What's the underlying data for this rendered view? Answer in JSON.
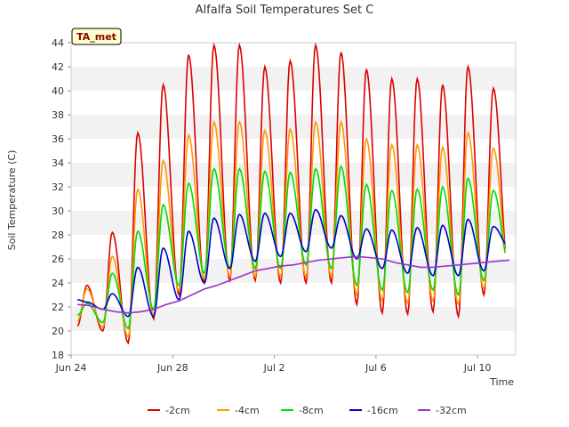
{
  "chart_data": {
    "type": "line",
    "title": "Alfalfa Soil Temperatures Set C",
    "xlabel": "Time",
    "ylabel": "Soil Temperature (C)",
    "badge": "TA_met",
    "xlim": [
      0,
      17.5
    ],
    "ylim": [
      18,
      44
    ],
    "x_ticks": [
      {
        "x": 0,
        "label": "Jun 24"
      },
      {
        "x": 4,
        "label": "Jun 28"
      },
      {
        "x": 8,
        "label": "Jul 2"
      },
      {
        "x": 12,
        "label": "Jul 6"
      },
      {
        "x": 16,
        "label": "Jul 10"
      }
    ],
    "y_ticks": [
      18,
      20,
      22,
      24,
      26,
      28,
      30,
      32,
      34,
      36,
      38,
      40,
      42,
      44
    ],
    "grid": "horizontal bands",
    "legend_position": "bottom",
    "days": [
      "Jun 24",
      "Jun 25",
      "Jun 26",
      "Jun 27",
      "Jun 28",
      "Jun 29",
      "Jun 30",
      "Jul 1",
      "Jul 2",
      "Jul 3",
      "Jul 4",
      "Jul 5",
      "Jul 6",
      "Jul 7",
      "Jul 8",
      "Jul 9",
      "Jul 10",
      "Jul 11"
    ],
    "series": [
      {
        "name": "-2cm",
        "color": "#dd0000",
        "daily_max": [
          23.8,
          28.2,
          36.5,
          40.5,
          43.0,
          43.8,
          43.8,
          42.0,
          42.5,
          43.8,
          43.2,
          41.8,
          41.0,
          41.0,
          40.5,
          42.0,
          40.2
        ],
        "daily_min": [
          20.4,
          20.0,
          19.0,
          21.0,
          23.0,
          24.0,
          24.2,
          24.2,
          24.0,
          24.0,
          24.0,
          22.2,
          21.5,
          21.4,
          21.6,
          21.2,
          23.0,
          24.2
        ]
      },
      {
        "name": "-4cm",
        "color": "#ff9900",
        "daily_max": [
          23.5,
          26.2,
          31.8,
          34.2,
          36.3,
          37.4,
          37.4,
          36.7,
          36.8,
          37.4,
          37.4,
          36.0,
          35.5,
          35.5,
          35.3,
          36.5,
          35.2
        ],
        "daily_min": [
          20.8,
          20.3,
          19.5,
          21.3,
          23.3,
          24.3,
          24.5,
          24.5,
          24.5,
          24.5,
          24.5,
          23.0,
          22.5,
          22.3,
          22.5,
          22.2,
          23.5,
          24.8
        ]
      },
      {
        "name": "-8cm",
        "color": "#00dd00",
        "daily_max": [
          22.3,
          24.8,
          28.3,
          30.5,
          32.3,
          33.5,
          33.5,
          33.3,
          33.2,
          33.5,
          33.7,
          32.2,
          31.7,
          31.8,
          32.0,
          32.7,
          31.7
        ],
        "daily_min": [
          21.3,
          20.7,
          20.2,
          21.8,
          23.8,
          24.8,
          25.2,
          25.2,
          25.2,
          25.5,
          25.2,
          23.8,
          23.4,
          23.2,
          23.4,
          23.0,
          24.2,
          25.5
        ]
      },
      {
        "name": "-16cm",
        "color": "#0000cc",
        "daily_max": [
          22.4,
          23.1,
          25.3,
          26.9,
          28.3,
          29.4,
          29.7,
          29.8,
          29.8,
          30.1,
          29.6,
          28.5,
          28.4,
          28.6,
          28.8,
          29.3,
          28.7
        ],
        "daily_min": [
          22.6,
          21.8,
          21.2,
          21.2,
          22.6,
          24.0,
          25.2,
          25.8,
          26.2,
          26.6,
          26.9,
          26.0,
          25.2,
          24.8,
          24.6,
          24.6,
          25.0,
          27.0
        ]
      },
      {
        "name": "-32cm",
        "color": "#9933cc",
        "x": [
          0,
          0.5,
          1,
          1.5,
          2,
          2.5,
          3,
          3.5,
          4,
          4.5,
          5,
          5.5,
          6,
          6.5,
          7,
          7.5,
          8,
          8.5,
          9,
          9.5,
          10,
          10.5,
          11,
          11.5,
          12,
          12.5,
          13,
          13.5,
          14,
          14.5,
          15,
          15.5,
          16,
          16.5,
          17
        ],
        "values": [
          22.2,
          22.1,
          21.8,
          21.6,
          21.5,
          21.6,
          21.8,
          22.2,
          22.5,
          23.0,
          23.5,
          23.8,
          24.2,
          24.6,
          25.0,
          25.2,
          25.4,
          25.5,
          25.7,
          25.9,
          26.0,
          26.1,
          26.2,
          26.1,
          26.0,
          25.7,
          25.5,
          25.3,
          25.3,
          25.4,
          25.5,
          25.6,
          25.7,
          25.8,
          25.9
        ]
      }
    ]
  }
}
